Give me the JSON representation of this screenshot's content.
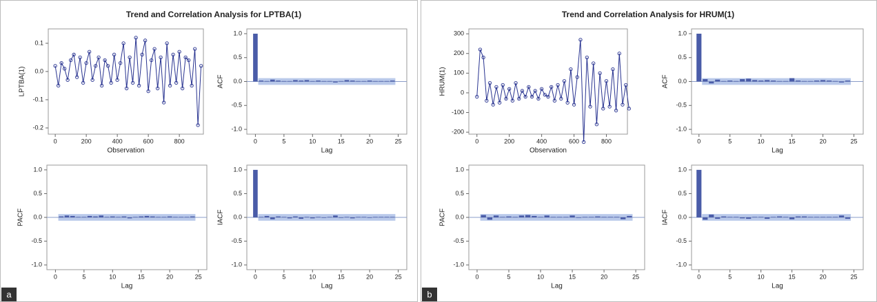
{
  "panels": [
    {
      "label": "a",
      "title": "Trend and Correlation Analysis for LPTBA(1)"
    },
    {
      "label": "b",
      "title": "Trend and Correlation Analysis for HRUM(1)"
    }
  ],
  "chart_data": [
    {
      "type": "line",
      "x_label": "Observation",
      "y_label": "LPTBA(1)",
      "color": "#26318f",
      "x": [
        0,
        20,
        40,
        60,
        80,
        100,
        120,
        140,
        160,
        180,
        200,
        220,
        240,
        260,
        280,
        300,
        320,
        340,
        360,
        380,
        400,
        420,
        440,
        460,
        480,
        500,
        520,
        540,
        560,
        580,
        600,
        620,
        640,
        660,
        680,
        700,
        720,
        740,
        760,
        780,
        800,
        820,
        840,
        860,
        880,
        900,
        920,
        940
      ],
      "values": [
        0.02,
        -0.05,
        0.03,
        0.01,
        -0.03,
        0.04,
        0.06,
        -0.02,
        0.05,
        -0.04,
        0.03,
        0.07,
        -0.03,
        0.02,
        0.05,
        -0.05,
        0.04,
        0.02,
        -0.04,
        0.06,
        -0.03,
        0.03,
        0.1,
        -0.06,
        0.05,
        -0.04,
        0.12,
        -0.05,
        0.06,
        0.11,
        -0.07,
        0.04,
        0.08,
        -0.06,
        0.05,
        -0.11,
        0.1,
        -0.05,
        0.06,
        -0.04,
        0.07,
        -0.06,
        0.05,
        0.04,
        -0.05,
        0.08,
        -0.19,
        0.02
      ],
      "xlim": [
        -45,
        955
      ],
      "ylim": [
        -0.222,
        0.151
      ],
      "xticks": [
        0,
        200,
        400,
        600,
        800
      ],
      "yticks": [
        0.1,
        {
          "value": 0,
          "label": "0.0"
        },
        -0.1,
        -0.2
      ]
    },
    {
      "type": "bar",
      "x_label": "Lag",
      "y_label": "ACF",
      "color": "#4a5ca8",
      "band_color": "#b9c9ea",
      "x": [
        0,
        1,
        2,
        3,
        4,
        5,
        6,
        7,
        8,
        9,
        10,
        11,
        12,
        13,
        14,
        15,
        16,
        17,
        18,
        19,
        20,
        21,
        22,
        23,
        24
      ],
      "values": [
        1,
        0.02,
        0.01,
        0.04,
        0.02,
        0.01,
        0.01,
        0.03,
        0.02,
        0.03,
        0.01,
        0.02,
        0.01,
        0.01,
        -0.02,
        0.01,
        0.03,
        0.02,
        0.01,
        0.01,
        0.02,
        0.01,
        0.01,
        0.01,
        0.02
      ],
      "confidence_band": [
        -0.07,
        0.07
      ],
      "xlim": [
        -1.5,
        26.5
      ],
      "ylim": [
        -1.1,
        1.1
      ],
      "xticks": [
        0,
        5,
        10,
        15,
        20,
        25
      ],
      "yticks": [
        {
          "value": 1,
          "label": "1.0"
        },
        0.5,
        {
          "value": 0,
          "label": "0.0"
        },
        -0.5,
        {
          "value": -1,
          "label": "-1.0"
        }
      ]
    },
    {
      "type": "bar",
      "x_label": "Lag",
      "y_label": "PACF",
      "color": "#4a5ca8",
      "band_color": "#b9c9ea",
      "x": [
        1,
        2,
        3,
        4,
        5,
        6,
        7,
        8,
        9,
        10,
        11,
        12,
        13,
        14,
        15,
        16,
        17,
        18,
        19,
        20,
        21,
        22,
        23,
        24
      ],
      "values": [
        0.02,
        0.04,
        0.03,
        0.01,
        0.01,
        0.03,
        0.02,
        0.04,
        0.01,
        0.02,
        0.01,
        0.02,
        -0.02,
        0.01,
        0.02,
        0.03,
        0.02,
        0.01,
        0.01,
        0.02,
        0.01,
        0.01,
        0.01,
        0.02
      ],
      "confidence_band": [
        -0.07,
        0.07
      ],
      "xlim": [
        -1.5,
        26.5
      ],
      "ylim": [
        -1.1,
        1.1
      ],
      "xticks": [
        0,
        5,
        10,
        15,
        20,
        25
      ],
      "yticks": [
        {
          "value": 1,
          "label": "1.0"
        },
        0.5,
        {
          "value": 0,
          "label": "0.0"
        },
        -0.5,
        {
          "value": -1,
          "label": "-1.0"
        }
      ]
    },
    {
      "type": "bar",
      "x_label": "Lag",
      "y_label": "IACF",
      "color": "#4a5ca8",
      "band_color": "#b9c9ea",
      "x": [
        0,
        1,
        2,
        3,
        4,
        5,
        6,
        7,
        8,
        9,
        10,
        11,
        12,
        13,
        14,
        15,
        16,
        17,
        18,
        19,
        20,
        21,
        22,
        23,
        24
      ],
      "values": [
        1,
        0.01,
        0.03,
        -0.04,
        0.02,
        0.01,
        -0.02,
        0.02,
        -0.03,
        0.01,
        -0.02,
        0.01,
        -0.01,
        0.01,
        0.04,
        -0.01,
        0.01,
        -0.02,
        0.01,
        0.01,
        -0.01,
        0.01,
        0.01,
        0.01,
        0.01
      ],
      "confidence_band": [
        -0.07,
        0.07
      ],
      "xlim": [
        -1.5,
        26.5
      ],
      "ylim": [
        -1.1,
        1.1
      ],
      "xticks": [
        0,
        5,
        10,
        15,
        20,
        25
      ],
      "yticks": [
        {
          "value": 1,
          "label": "1.0"
        },
        0.5,
        {
          "value": 0,
          "label": "0.0"
        },
        -0.5,
        {
          "value": -1,
          "label": "-1.0"
        }
      ]
    },
    {
      "type": "line",
      "x_label": "Observation",
      "y_label": "HRUM(1)",
      "color": "#26318f",
      "x": [
        0,
        20,
        40,
        60,
        80,
        100,
        120,
        140,
        160,
        180,
        200,
        220,
        240,
        260,
        280,
        300,
        320,
        340,
        360,
        380,
        400,
        420,
        440,
        460,
        480,
        500,
        520,
        540,
        560,
        580,
        600,
        620,
        640,
        660,
        680,
        700,
        720,
        740,
        760,
        780,
        800,
        820,
        840,
        860,
        880,
        900,
        920,
        940
      ],
      "values": [
        -20,
        220,
        180,
        -40,
        50,
        -60,
        30,
        -50,
        40,
        -30,
        20,
        -40,
        50,
        -30,
        10,
        -20,
        30,
        -20,
        10,
        -30,
        20,
        -10,
        -20,
        30,
        -40,
        40,
        -30,
        60,
        -50,
        120,
        -60,
        80,
        270,
        -250,
        180,
        -70,
        150,
        -160,
        100,
        -80,
        60,
        -70,
        120,
        -90,
        200,
        -60,
        40,
        -80
      ],
      "xlim": [
        -50,
        930
      ],
      "ylim": [
        -210,
        325
      ],
      "xticks": [
        0,
        200,
        400,
        600,
        800
      ],
      "yticks": [
        300,
        200,
        100,
        0,
        -100,
        -200
      ]
    },
    {
      "type": "bar",
      "x_label": "Lag",
      "y_label": "ACF",
      "color": "#4a5ca8",
      "band_color": "#b9c9ea",
      "x": [
        0,
        1,
        2,
        3,
        4,
        5,
        6,
        7,
        8,
        9,
        10,
        11,
        12,
        13,
        14,
        15,
        16,
        17,
        18,
        19,
        20,
        21,
        22,
        23,
        24
      ],
      "values": [
        1,
        0.05,
        -0.04,
        0.04,
        0.01,
        0.02,
        0.01,
        0.05,
        0.06,
        0.03,
        0.02,
        0.03,
        0.02,
        0.01,
        0.01,
        0.07,
        0.02,
        0.01,
        0.01,
        0.02,
        0.03,
        0.02,
        0.01,
        -0.02,
        0.02
      ],
      "confidence_band": [
        -0.07,
        0.07
      ],
      "xlim": [
        -1.2,
        26.5
      ],
      "ylim": [
        -1.1,
        1.1
      ],
      "xticks": [
        0,
        5,
        10,
        15,
        20,
        25
      ],
      "yticks": [
        {
          "value": 1,
          "label": "1.0"
        },
        0.5,
        {
          "value": 0,
          "label": "0.0"
        },
        -0.5,
        {
          "value": -1,
          "label": "-1.0"
        }
      ]
    },
    {
      "type": "bar",
      "x_label": "Lag",
      "y_label": "PACF",
      "color": "#4a5ca8",
      "band_color": "#b9c9ea",
      "x": [
        1,
        2,
        3,
        4,
        5,
        6,
        7,
        8,
        9,
        10,
        11,
        12,
        13,
        14,
        15,
        16,
        17,
        18,
        19,
        20,
        21,
        22,
        23,
        24
      ],
      "values": [
        0.05,
        -0.05,
        0.04,
        0.01,
        0.02,
        0.01,
        0.04,
        0.05,
        0.03,
        0.01,
        0.04,
        0.01,
        0.01,
        0.01,
        0.04,
        -0.01,
        0.01,
        0.01,
        0.02,
        0.01,
        0.01,
        0.01,
        -0.04,
        0.03
      ],
      "confidence_band": [
        -0.07,
        0.07
      ],
      "xlim": [
        -1.3,
        26.4
      ],
      "ylim": [
        -1.1,
        1.1
      ],
      "xticks": [
        0,
        5,
        10,
        15,
        20,
        25
      ],
      "yticks": [
        {
          "value": 1,
          "label": "1.0"
        },
        0.5,
        {
          "value": 0,
          "label": "0.0"
        },
        -0.5,
        {
          "value": -1,
          "label": "-1.0"
        }
      ]
    },
    {
      "type": "bar",
      "x_label": "Lag",
      "y_label": "IACF",
      "color": "#4a5ca8",
      "band_color": "#b9c9ea",
      "x": [
        0,
        1,
        2,
        3,
        4,
        5,
        6,
        7,
        8,
        9,
        10,
        11,
        12,
        13,
        14,
        15,
        16,
        17,
        18,
        19,
        20,
        21,
        22,
        23,
        24
      ],
      "values": [
        1,
        -0.05,
        0.06,
        -0.03,
        0.02,
        0.01,
        0.01,
        -0.02,
        -0.03,
        0.01,
        0.01,
        -0.03,
        0.01,
        0.02,
        0.01,
        -0.04,
        0.02,
        0.02,
        0.01,
        0.01,
        0.01,
        0.01,
        0.01,
        0.04,
        -0.03
      ],
      "confidence_band": [
        -0.07,
        0.07
      ],
      "xlim": [
        -1.2,
        26.5
      ],
      "ylim": [
        -1.1,
        1.1
      ],
      "xticks": [
        0,
        5,
        10,
        15,
        20,
        25
      ],
      "yticks": [
        {
          "value": 1,
          "label": "1.0"
        },
        0.5,
        {
          "value": 0,
          "label": "0.0"
        },
        -0.5,
        {
          "value": -1,
          "label": "-1.0"
        }
      ]
    }
  ]
}
